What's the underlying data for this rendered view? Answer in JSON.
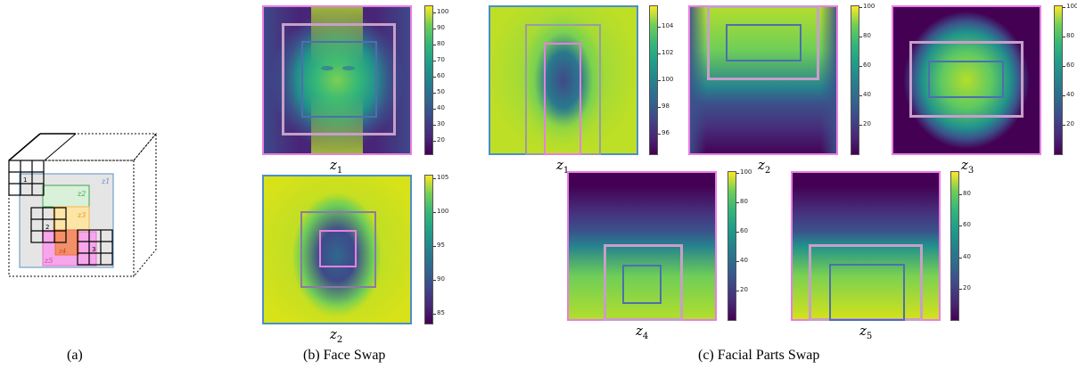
{
  "captions": {
    "a": "(a)",
    "b": "(b) Face Swap",
    "c": "(c) Facial Parts Swap"
  },
  "diagram_a": {
    "latent_labels": [
      "z1",
      "z2",
      "z3",
      "z4",
      "z5"
    ],
    "grid_numbers": [
      "1",
      "2",
      "3"
    ],
    "colors": {
      "z1": "#5b8fc7",
      "z2": "#3aa655",
      "z3": "#f2b84b",
      "z4": "#f06a3c",
      "z5": "#e66fd0"
    }
  },
  "heatmaps": [
    {
      "id": "b-z1",
      "label_main": "z",
      "label_sub": "1",
      "ticks": [
        "100",
        "90",
        "80",
        "70",
        "60",
        "50",
        "40",
        "30",
        "20"
      ]
    },
    {
      "id": "b-z2",
      "label_main": "z",
      "label_sub": "2",
      "ticks": [
        "105",
        "100",
        "95",
        "90",
        "85"
      ]
    },
    {
      "id": "c-z1",
      "label_main": "z",
      "label_sub": "1",
      "ticks": [
        "104",
        "102",
        "100",
        "98",
        "96"
      ]
    },
    {
      "id": "c-z2",
      "label_main": "z",
      "label_sub": "2",
      "ticks": [
        "100",
        "80",
        "60",
        "40",
        "20"
      ]
    },
    {
      "id": "c-z3",
      "label_main": "z",
      "label_sub": "3",
      "ticks": [
        "100",
        "80",
        "60",
        "40",
        "20"
      ]
    },
    {
      "id": "c-z4",
      "label_main": "z",
      "label_sub": "4",
      "ticks": [
        "100",
        "80",
        "60",
        "40",
        "20"
      ]
    },
    {
      "id": "c-z5",
      "label_main": "z",
      "label_sub": "5",
      "ticks": [
        "80",
        "60",
        "40",
        "20"
      ]
    }
  ],
  "frame_colors": {
    "outer": "#e87fe3",
    "mid": "#c79fc9",
    "inner": "#4c6fae"
  }
}
